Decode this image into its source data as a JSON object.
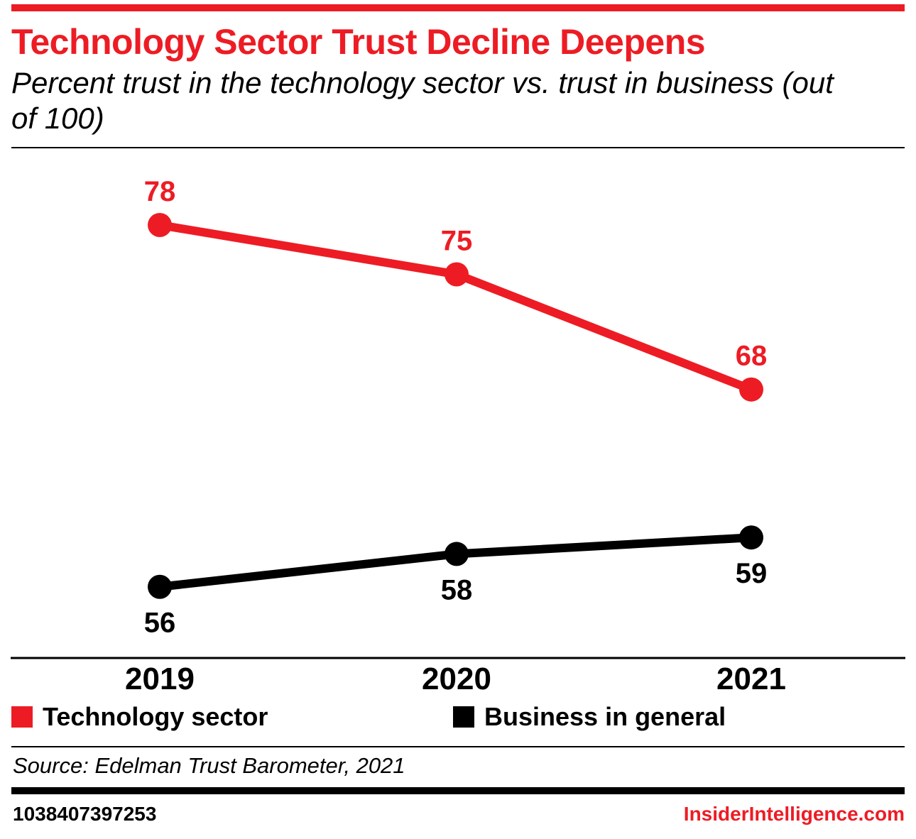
{
  "header": {
    "title": "Technology Sector Trust Decline Deepens",
    "subtitle": "Percent trust in the technology sector vs. trust in business (out of 100)"
  },
  "chart_data": {
    "type": "line",
    "title": "Technology Sector Trust Decline Deepens",
    "subtitle": "Percent trust in the technology sector vs. trust in business (out of 100)",
    "categories": [
      "2019",
      "2020",
      "2021"
    ],
    "series": [
      {
        "name": "Technology sector",
        "color": "#ED1C24",
        "values": [
          78,
          75,
          68
        ],
        "label_position": "above"
      },
      {
        "name": "Business in general",
        "color": "#000000",
        "values": [
          56,
          58,
          59
        ],
        "label_position": "below"
      }
    ],
    "xlabel": "",
    "ylabel": "",
    "ylim": [
      50,
      80
    ],
    "grid": false,
    "legend_position": "bottom"
  },
  "footer": {
    "source": "Source: Edelman Trust Barometer, 2021",
    "chart_id": "1038407397253",
    "site": "InsiderIntelligence.com"
  },
  "colors": {
    "accent": "#ED1C24",
    "axis": "#000000"
  }
}
